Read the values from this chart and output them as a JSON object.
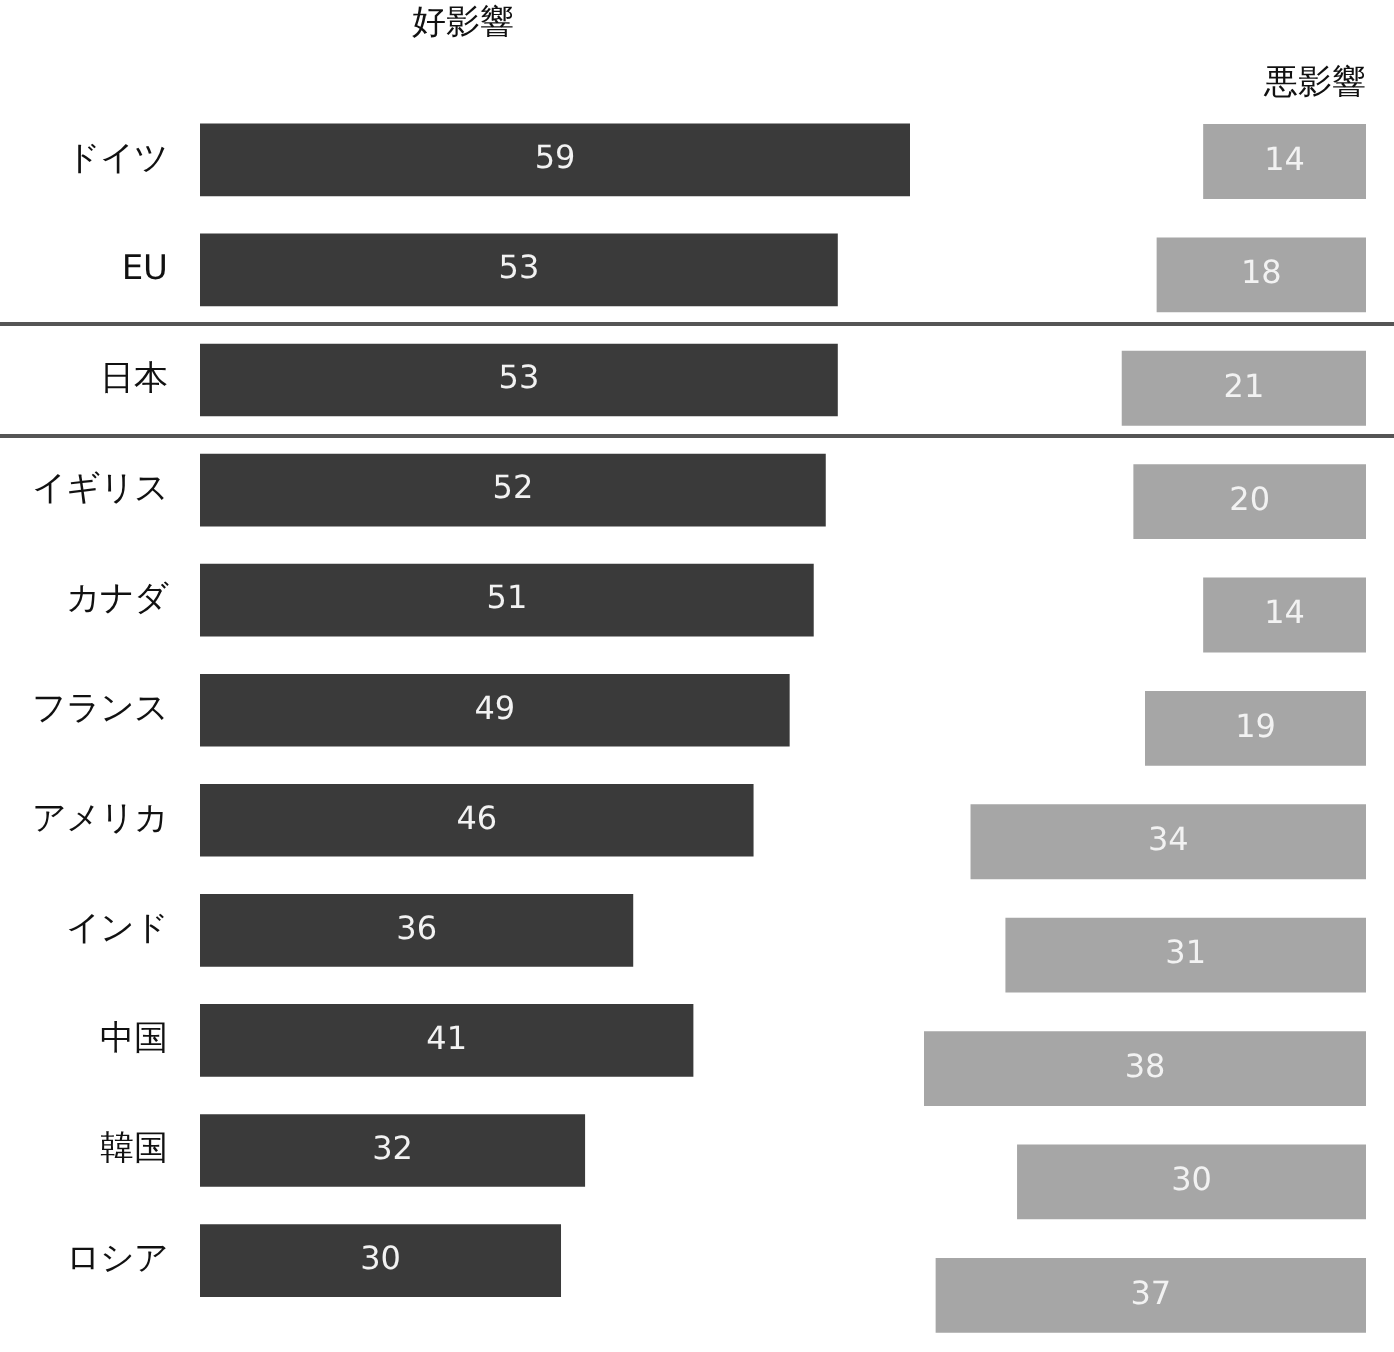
{
  "chart_data": [
    {
      "type": "bar",
      "orientation": "horizontal",
      "title": "好影響",
      "categories": [
        "ドイツ",
        "EU",
        "日本",
        "イギリス",
        "カナダ",
        "フランス",
        "アメリカ",
        "インド",
        "中国",
        "韓国",
        "ロシア"
      ],
      "values": [
        59,
        53,
        53,
        52,
        51,
        49,
        46,
        36,
        41,
        32,
        30
      ],
      "color": "#3a3a3a",
      "xlim": [
        0,
        59
      ],
      "data_labels": true,
      "tick_labels": "y"
    },
    {
      "type": "bar",
      "orientation": "horizontal",
      "title": "悪影響",
      "categories": [
        null,
        null,
        null,
        null,
        null,
        null,
        null,
        null,
        null,
        null,
        null
      ],
      "values": [
        14,
        18,
        21,
        20,
        14,
        19,
        34,
        31,
        38,
        30,
        37
      ],
      "color": "#a6a6a6",
      "xlim": [
        38,
        0
      ],
      "data_labels": true,
      "tick_labels": false
    }
  ]
}
